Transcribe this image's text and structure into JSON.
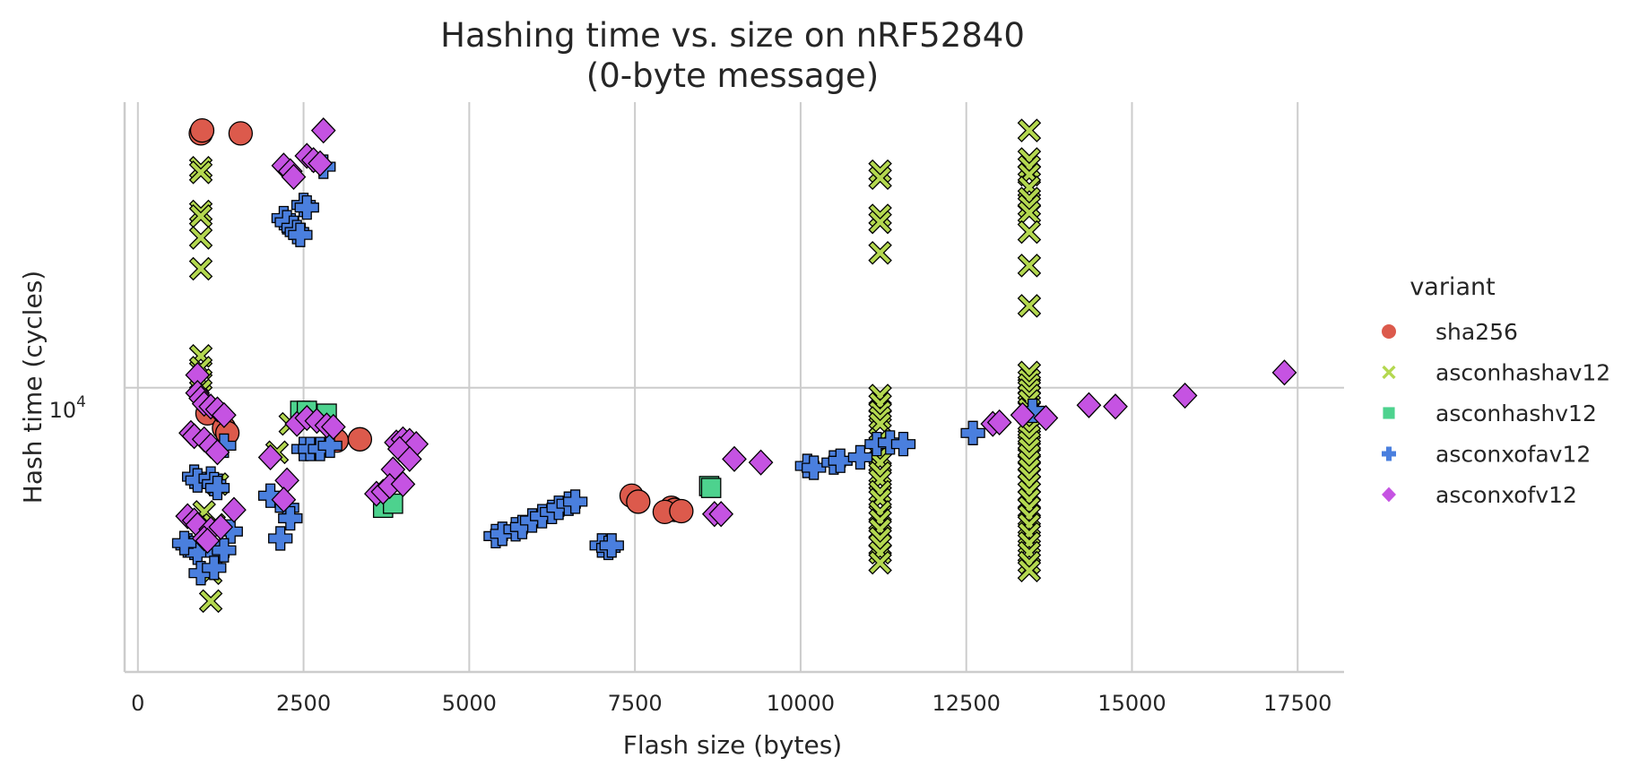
{
  "chart_data": {
    "type": "scatter",
    "title_line1": "Hashing time vs. size on nRF52840",
    "title_line2": "(0-byte message)",
    "xlabel": "Flash size (bytes)",
    "ylabel": "Hash time (cycles)",
    "xlim": [
      -200,
      18200
    ],
    "xscale": "linear",
    "yscale": "log",
    "ylim": [
      3350,
      30000
    ],
    "xticks": [
      0,
      2500,
      5000,
      7500,
      10000,
      12500,
      15000,
      17500
    ],
    "xtick_labels": [
      "0",
      "2500",
      "5000",
      "7500",
      "10000",
      "12500",
      "15000",
      "17500"
    ],
    "ytick_value": 10000,
    "ytick_label_base": "10",
    "ytick_label_exp": "4",
    "grid": true,
    "legend_placement": "right",
    "legend_title": "variant",
    "series": [
      {
        "name": "sha256",
        "marker": "circle",
        "color": "#dc5a4c",
        "points": [
          [
            950,
            26600
          ],
          [
            970,
            26900
          ],
          [
            1550,
            26600
          ],
          [
            1050,
            9060
          ],
          [
            1300,
            8560
          ],
          [
            1350,
            8400
          ],
          [
            3000,
            8160
          ],
          [
            3350,
            8200
          ],
          [
            7450,
            6600
          ],
          [
            7550,
            6450
          ],
          [
            8050,
            6300
          ],
          [
            8100,
            6250
          ],
          [
            7950,
            6200
          ],
          [
            8200,
            6220
          ]
        ]
      },
      {
        "name": "asconhashav12",
        "marker": "x",
        "color": "#b4d850",
        "points": [
          [
            950,
            23300
          ],
          [
            950,
            22900
          ],
          [
            950,
            19700
          ],
          [
            950,
            19350
          ],
          [
            950,
            17800
          ],
          [
            950,
            15800
          ],
          [
            950,
            11300
          ],
          [
            950,
            10800
          ],
          [
            950,
            10300
          ],
          [
            950,
            9900
          ],
          [
            2300,
            8700
          ],
          [
            2100,
            7800
          ],
          [
            1200,
            6900
          ],
          [
            1000,
            6200
          ],
          [
            1150,
            5900
          ],
          [
            1100,
            4900
          ],
          [
            1100,
            4400
          ],
          [
            11200,
            23000
          ],
          [
            11200,
            22400
          ],
          [
            11200,
            19400
          ],
          [
            11200,
            18900
          ],
          [
            11200,
            16800
          ],
          [
            11200,
            9700
          ],
          [
            11200,
            9400
          ],
          [
            11200,
            9100
          ],
          [
            11200,
            8900
          ],
          [
            11200,
            8700
          ],
          [
            11200,
            8200
          ],
          [
            11200,
            8000
          ],
          [
            11200,
            7700
          ],
          [
            11200,
            7500
          ],
          [
            11200,
            7200
          ],
          [
            11200,
            7000
          ],
          [
            11200,
            6700
          ],
          [
            11200,
            6500
          ],
          [
            11200,
            6200
          ],
          [
            11200,
            6000
          ],
          [
            11200,
            5800
          ],
          [
            11200,
            5600
          ],
          [
            11200,
            5450
          ],
          [
            11200,
            5300
          ],
          [
            11200,
            5100
          ],
          [
            13450,
            26900
          ],
          [
            13450,
            24100
          ],
          [
            13450,
            23400
          ],
          [
            13450,
            22700
          ],
          [
            13450,
            21600
          ],
          [
            13450,
            20700
          ],
          [
            13450,
            20100
          ],
          [
            13450,
            19600
          ],
          [
            13450,
            18200
          ],
          [
            13450,
            16000
          ],
          [
            13450,
            13700
          ],
          [
            13450,
            10600
          ],
          [
            13450,
            10300
          ],
          [
            13450,
            10100
          ],
          [
            13450,
            9900
          ],
          [
            13450,
            9700
          ],
          [
            13450,
            9500
          ],
          [
            13450,
            9200
          ],
          [
            13450,
            9000
          ],
          [
            13450,
            8700
          ],
          [
            13450,
            8500
          ],
          [
            13450,
            8300
          ],
          [
            13450,
            8100
          ],
          [
            13450,
            7900
          ],
          [
            13450,
            7700
          ],
          [
            13450,
            7500
          ],
          [
            13450,
            7300
          ],
          [
            13450,
            7100
          ],
          [
            13450,
            6900
          ],
          [
            13450,
            6700
          ],
          [
            13450,
            6500
          ],
          [
            13450,
            6300
          ],
          [
            13450,
            6100
          ],
          [
            13450,
            5900
          ],
          [
            13450,
            5700
          ],
          [
            13450,
            5500
          ],
          [
            13450,
            5300
          ],
          [
            13450,
            5100
          ],
          [
            13450,
            4950
          ]
        ]
      },
      {
        "name": "asconhashv12",
        "marker": "square",
        "color": "#4dd28e",
        "points": [
          [
            2450,
            9150
          ],
          [
            2550,
            9150
          ],
          [
            2850,
            9050
          ],
          [
            8620,
            6850
          ],
          [
            8650,
            6800
          ],
          [
            3700,
            6300
          ],
          [
            3850,
            6400
          ]
        ]
      },
      {
        "name": "asconxofav12",
        "marker": "plus",
        "color": "#4a7fde",
        "points": [
          [
            2800,
            23400
          ],
          [
            2500,
            20200
          ],
          [
            2550,
            20000
          ],
          [
            2200,
            19200
          ],
          [
            2250,
            18900
          ],
          [
            2350,
            18500
          ],
          [
            2400,
            18200
          ],
          [
            2450,
            18000
          ],
          [
            2500,
            7900
          ],
          [
            2600,
            7900
          ],
          [
            2750,
            7900
          ],
          [
            2900,
            8000
          ],
          [
            850,
            7100
          ],
          [
            900,
            7000
          ],
          [
            1100,
            7050
          ],
          [
            1150,
            6900
          ],
          [
            1200,
            6800
          ],
          [
            1300,
            8000
          ],
          [
            2000,
            6600
          ],
          [
            2250,
            6300
          ],
          [
            2300,
            6050
          ],
          [
            2150,
            5600
          ],
          [
            1400,
            5750
          ],
          [
            750,
            5450
          ],
          [
            850,
            5400
          ],
          [
            900,
            5300
          ],
          [
            1200,
            5300
          ],
          [
            1300,
            5350
          ],
          [
            950,
            4900
          ],
          [
            1150,
            5000
          ],
          [
            700,
            5500
          ],
          [
            5400,
            5650
          ],
          [
            5500,
            5700
          ],
          [
            5700,
            5800
          ],
          [
            5800,
            5850
          ],
          [
            5950,
            6000
          ],
          [
            6100,
            6100
          ],
          [
            6250,
            6200
          ],
          [
            6350,
            6300
          ],
          [
            6500,
            6400
          ],
          [
            6600,
            6450
          ],
          [
            7000,
            5450
          ],
          [
            7100,
            5400
          ],
          [
            7150,
            5450
          ],
          [
            10100,
            7400
          ],
          [
            10200,
            7350
          ],
          [
            10500,
            7500
          ],
          [
            10600,
            7550
          ],
          [
            10900,
            7650
          ],
          [
            11150,
            8050
          ],
          [
            11350,
            8100
          ],
          [
            11550,
            8050
          ],
          [
            12600,
            8400
          ],
          [
            13500,
            9150
          ]
        ]
      },
      {
        "name": "asconxofv12",
        "marker": "diamond",
        "color": "#c553e2",
        "points": [
          [
            2800,
            26900
          ],
          [
            2550,
            24400
          ],
          [
            2650,
            24000
          ],
          [
            2750,
            23700
          ],
          [
            2200,
            23500
          ],
          [
            2300,
            23000
          ],
          [
            2350,
            22500
          ],
          [
            900,
            10500
          ],
          [
            900,
            9800
          ],
          [
            950,
            9600
          ],
          [
            1000,
            9400
          ],
          [
            1100,
            9300
          ],
          [
            1200,
            9200
          ],
          [
            1300,
            9000
          ],
          [
            800,
            8400
          ],
          [
            850,
            8300
          ],
          [
            1000,
            8200
          ],
          [
            1100,
            8000
          ],
          [
            1200,
            7800
          ],
          [
            2000,
            7650
          ],
          [
            2250,
            7000
          ],
          [
            2200,
            6500
          ],
          [
            1450,
            6250
          ],
          [
            750,
            6100
          ],
          [
            850,
            6000
          ],
          [
            900,
            5900
          ],
          [
            1100,
            5800
          ],
          [
            1250,
            5850
          ],
          [
            1000,
            5600
          ],
          [
            1050,
            5550
          ],
          [
            2400,
            8700
          ],
          [
            2550,
            8900
          ],
          [
            2700,
            8800
          ],
          [
            2850,
            8650
          ],
          [
            2950,
            8600
          ],
          [
            3900,
            8100
          ],
          [
            4000,
            8200
          ],
          [
            4100,
            8150
          ],
          [
            4200,
            8050
          ],
          [
            3950,
            7900
          ],
          [
            4100,
            7600
          ],
          [
            3850,
            7300
          ],
          [
            3600,
            6650
          ],
          [
            3700,
            6700
          ],
          [
            3800,
            6850
          ],
          [
            4000,
            6900
          ],
          [
            8700,
            6150
          ],
          [
            8800,
            6150
          ],
          [
            9000,
            7600
          ],
          [
            9400,
            7500
          ],
          [
            12900,
            8700
          ],
          [
            13000,
            8750
          ],
          [
            13350,
            9000
          ],
          [
            13700,
            8900
          ],
          [
            14350,
            9350
          ],
          [
            14750,
            9300
          ],
          [
            15800,
            9700
          ],
          [
            17300,
            10600
          ]
        ]
      }
    ]
  }
}
